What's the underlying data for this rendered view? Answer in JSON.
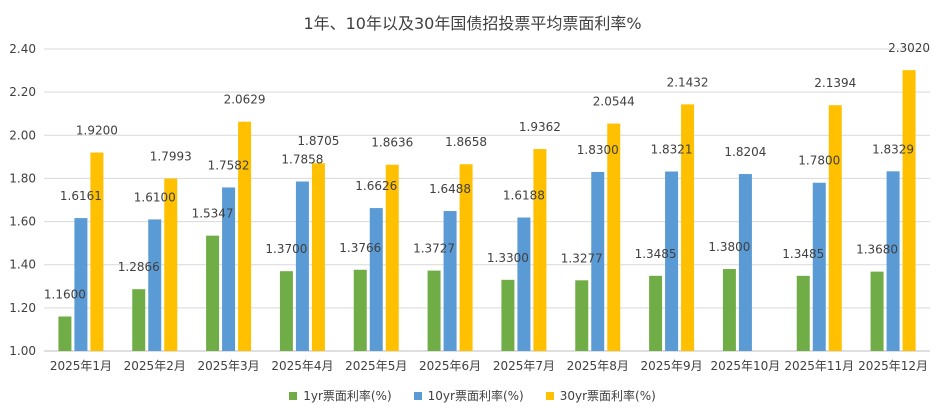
{
  "chart_data": {
    "type": "bar",
    "title": "1年、10年以及30年国债招投票平均票面利率%",
    "categories": [
      "2025年1月",
      "2025年2月",
      "2025年3月",
      "2025年4月",
      "2025年5月",
      "2025年6月",
      "2025年7月",
      "2025年8月",
      "2025年9月",
      "2025年10月",
      "2025年11月",
      "2025年12月"
    ],
    "ylim": [
      1.0,
      2.4
    ],
    "yticks": [
      "1.00",
      "1.20",
      "1.40",
      "1.60",
      "1.80",
      "2.00",
      "2.20",
      "2.40"
    ],
    "legend_position": "bottom",
    "series": [
      {
        "name": "1yr票面利率(%)",
        "color": "#70ad47",
        "values": [
          1.16,
          1.2866,
          1.5347,
          1.37,
          1.3766,
          1.3727,
          1.33,
          1.3277,
          1.3485,
          1.38,
          1.3485,
          1.368
        ],
        "labels": [
          "1.1600",
          "1.2866",
          "1.5347",
          "1.3700",
          "1.3766",
          "1.3727",
          "1.3300",
          "1.3277",
          "1.3485",
          "1.3800",
          "1.3485",
          "1.3680"
        ]
      },
      {
        "name": "10yr票面利率(%)",
        "color": "#5b9bd5",
        "values": [
          1.6161,
          1.61,
          1.7582,
          1.7858,
          1.6626,
          1.6488,
          1.6188,
          1.83,
          1.8321,
          1.8204,
          1.78,
          1.8329
        ],
        "labels": [
          "1.6161",
          "1.6100",
          "1.7582",
          "1.7858",
          "1.6626",
          "1.6488",
          "1.6188",
          "1.8300",
          "1.8321",
          "1.8204",
          "1.7800",
          "1.8329"
        ]
      },
      {
        "name": "30yr票面利率(%)",
        "color": "#ffc000",
        "values": [
          1.92,
          1.7993,
          2.0629,
          1.8705,
          1.8636,
          1.8658,
          1.9362,
          2.0544,
          2.1432,
          null,
          2.1394,
          2.302
        ],
        "labels": [
          "1.9200",
          "1.7993",
          "2.0629",
          "1.8705",
          "1.8636",
          "1.8658",
          "1.9362",
          "2.0544",
          "2.1432",
          "",
          "2.1394",
          "2.3020"
        ]
      }
    ]
  }
}
